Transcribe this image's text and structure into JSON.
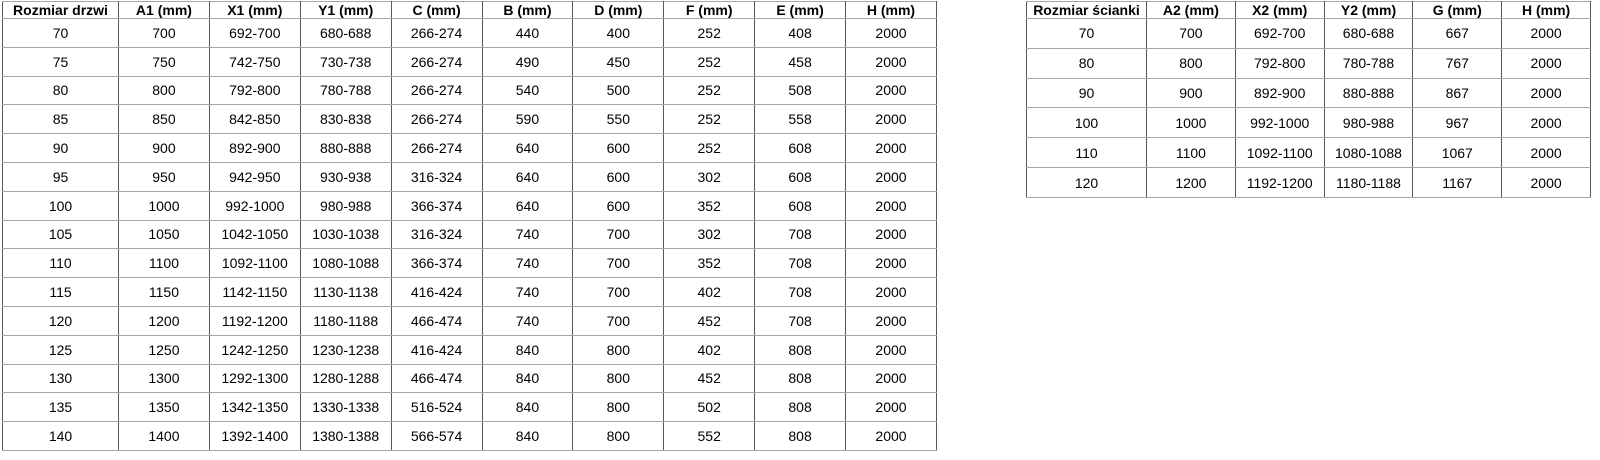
{
  "colors": {
    "border_vertical": "#595959",
    "border_horizontal": "#a6a6a6",
    "text": "#000000",
    "background": "#ffffff"
  },
  "doors_table": {
    "headers": [
      "Rozmiar drzwi",
      "A1 (mm)",
      "X1 (mm)",
      "Y1 (mm)",
      "C (mm)",
      "B (mm)",
      "D (mm)",
      "F (mm)",
      "E (mm)",
      "H (mm)"
    ],
    "rows": [
      [
        "70",
        "700",
        "692-700",
        "680-688",
        "266-274",
        "440",
        "400",
        "252",
        "408",
        "2000"
      ],
      [
        "75",
        "750",
        "742-750",
        "730-738",
        "266-274",
        "490",
        "450",
        "252",
        "458",
        "2000"
      ],
      [
        "80",
        "800",
        "792-800",
        "780-788",
        "266-274",
        "540",
        "500",
        "252",
        "508",
        "2000"
      ],
      [
        "85",
        "850",
        "842-850",
        "830-838",
        "266-274",
        "590",
        "550",
        "252",
        "558",
        "2000"
      ],
      [
        "90",
        "900",
        "892-900",
        "880-888",
        "266-274",
        "640",
        "600",
        "252",
        "608",
        "2000"
      ],
      [
        "95",
        "950",
        "942-950",
        "930-938",
        "316-324",
        "640",
        "600",
        "302",
        "608",
        "2000"
      ],
      [
        "100",
        "1000",
        "992-1000",
        "980-988",
        "366-374",
        "640",
        "600",
        "352",
        "608",
        "2000"
      ],
      [
        "105",
        "1050",
        "1042-1050",
        "1030-1038",
        "316-324",
        "740",
        "700",
        "302",
        "708",
        "2000"
      ],
      [
        "110",
        "1100",
        "1092-1100",
        "1080-1088",
        "366-374",
        "740",
        "700",
        "352",
        "708",
        "2000"
      ],
      [
        "115",
        "1150",
        "1142-1150",
        "1130-1138",
        "416-424",
        "740",
        "700",
        "402",
        "708",
        "2000"
      ],
      [
        "120",
        "1200",
        "1192-1200",
        "1180-1188",
        "466-474",
        "740",
        "700",
        "452",
        "708",
        "2000"
      ],
      [
        "125",
        "1250",
        "1242-1250",
        "1230-1238",
        "416-424",
        "840",
        "800",
        "402",
        "808",
        "2000"
      ],
      [
        "130",
        "1300",
        "1292-1300",
        "1280-1288",
        "466-474",
        "840",
        "800",
        "452",
        "808",
        "2000"
      ],
      [
        "135",
        "1350",
        "1342-1350",
        "1330-1338",
        "516-524",
        "840",
        "800",
        "502",
        "808",
        "2000"
      ],
      [
        "140",
        "1400",
        "1392-1400",
        "1380-1388",
        "566-574",
        "840",
        "800",
        "552",
        "808",
        "2000"
      ]
    ]
  },
  "walls_table": {
    "headers": [
      "Rozmiar ścianki",
      "A2 (mm)",
      "X2 (mm)",
      "Y2 (mm)",
      "G (mm)",
      "H (mm)"
    ],
    "rows": [
      [
        "70",
        "700",
        "692-700",
        "680-688",
        "667",
        "2000"
      ],
      [
        "80",
        "800",
        "792-800",
        "780-788",
        "767",
        "2000"
      ],
      [
        "90",
        "900",
        "892-900",
        "880-888",
        "867",
        "2000"
      ],
      [
        "100",
        "1000",
        "992-1000",
        "980-988",
        "967",
        "2000"
      ],
      [
        "110",
        "1100",
        "1092-1100",
        "1080-1088",
        "1067",
        "2000"
      ],
      [
        "120",
        "1200",
        "1192-1200",
        "1180-1188",
        "1167",
        "2000"
      ]
    ]
  }
}
